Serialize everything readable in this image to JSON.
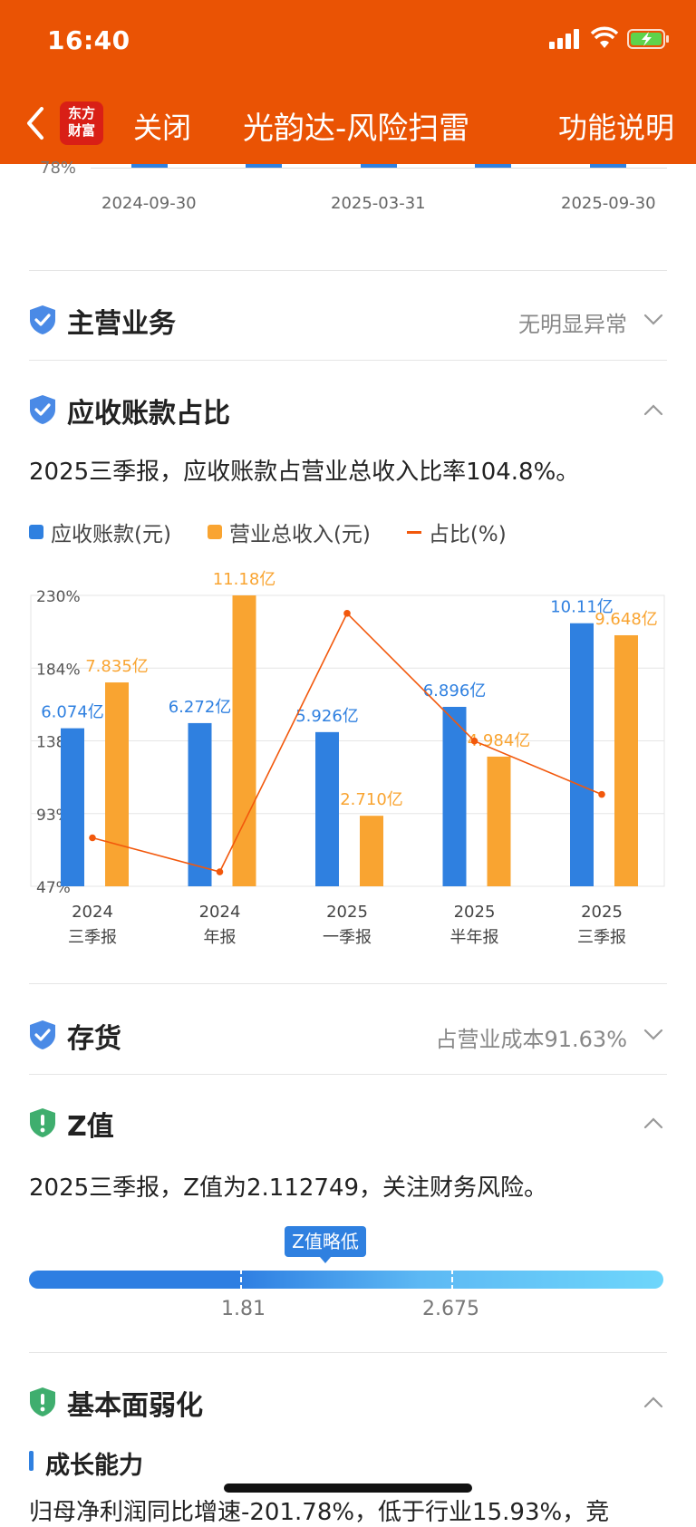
{
  "status_bar": {
    "time": "16:40"
  },
  "nav": {
    "logo_line1": "东方",
    "logo_line2": "财富",
    "close": "关闭",
    "title": "光韵达-风险扫雷",
    "help": "功能说明"
  },
  "top_chart": {
    "y_label": "78%",
    "x_labels": [
      "2024-09-30",
      "2025-03-31",
      "2025-09-30"
    ]
  },
  "sections": {
    "main_business": {
      "title": "主营业务",
      "status": "无明显异常"
    },
    "receivables": {
      "title": "应收账款占比",
      "description": "2025三季报，应收账款占营业总收入比率104.8%。",
      "legend": [
        "应收账款(元)",
        "营业总收入(元)",
        "占比(%)"
      ]
    },
    "inventory": {
      "title": "存货",
      "status": "占营业成本91.63%"
    },
    "z_value": {
      "title": "Z值",
      "description": "2025三季报，Z值为2.112749，关注财务风险。",
      "badge": "Z值略低",
      "value": 2.112749,
      "ticks": [
        "1.81",
        "2.675"
      ]
    },
    "fundamental": {
      "title": "基本面弱化",
      "sub_title": "成长能力",
      "cut_text": "归母净利润同比增速-201.78%，低于行业15.93%，竞"
    }
  },
  "colors": {
    "brand": "#ea5304",
    "receivable": "#2f80e0",
    "revenue": "#f9a431",
    "ratio": "#f2580c",
    "shield_blue": "#4a8ae6",
    "shield_green": "#3fae6e"
  },
  "chart_data": {
    "type": "bar",
    "categories": [
      [
        "2024",
        "三季报"
      ],
      [
        "2024",
        "年报"
      ],
      [
        "2025",
        "一季报"
      ],
      [
        "2025",
        "半年报"
      ],
      [
        "2025",
        "三季报"
      ]
    ],
    "y_ticks": [
      "230%",
      "184%",
      "138%",
      "93%",
      "47%"
    ],
    "ylim": [
      0,
      11.18
    ],
    "series": [
      {
        "name": "应收账款(元)",
        "values": [
          6.074,
          6.272,
          5.926,
          6.896,
          10.11
        ],
        "labels": [
          "6.074亿",
          "6.272亿",
          "5.926亿",
          "6.896亿",
          "10.11亿"
        ]
      },
      {
        "name": "营业总收入(元)",
        "values": [
          7.835,
          11.18,
          2.71,
          4.984,
          9.648
        ],
        "labels": [
          "7.835亿",
          "11.18亿",
          "2.710亿",
          "4.984亿",
          "9.648亿"
        ]
      },
      {
        "name": "占比(%)",
        "type": "line",
        "values": [
          77.5,
          56.1,
          218.7,
          138.4,
          104.8
        ]
      }
    ],
    "ratio_ylim": [
      47,
      230
    ],
    "legend": "top-left",
    "grid": true
  }
}
